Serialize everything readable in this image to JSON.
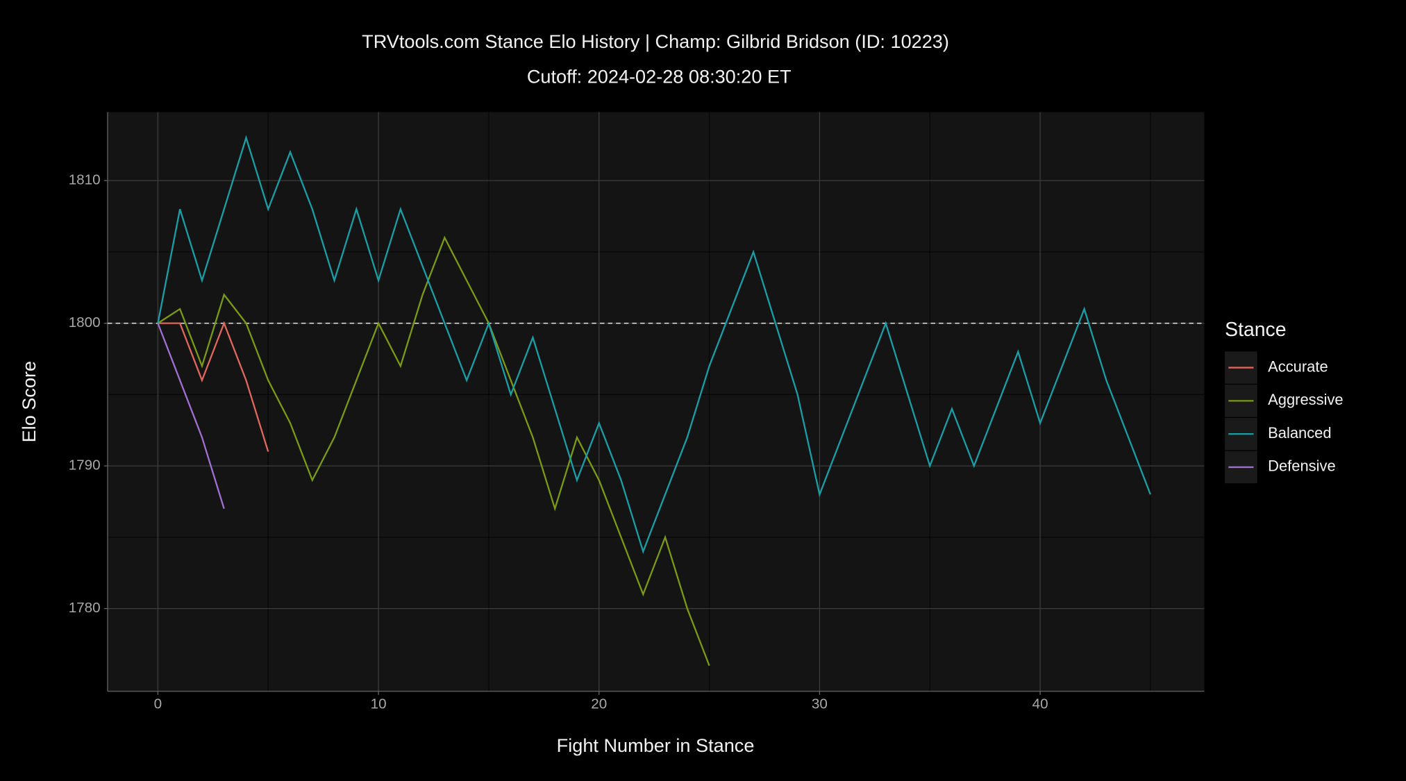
{
  "chart_data": {
    "type": "line",
    "title": "TRVtools.com Stance Elo History  |  Champ: Gilbrid Bridson (ID: 10223)",
    "subtitle": "Cutoff: 2024-02-28 08:30:20 ET",
    "x_label": "Fight Number in Stance",
    "y_label": "Elo Score",
    "legend_title": "Stance",
    "legend_position": "right",
    "grid": true,
    "hline": 1800,
    "xlim": [
      -2.28,
      47.44
    ],
    "ylim": [
      1774.2,
      1814.8
    ],
    "xticks": [
      0,
      10,
      20,
      30,
      40
    ],
    "yticks": [
      1780,
      1790,
      1800,
      1810
    ],
    "minor_xticks": [
      5,
      15,
      25,
      35,
      45
    ],
    "minor_yticks": [
      1785,
      1795,
      1805
    ],
    "series": [
      {
        "name": "Accurate",
        "color": "#e0675c",
        "x": [
          0,
          1,
          2,
          3,
          4,
          5
        ],
        "values": [
          1800,
          1800,
          1796,
          1800,
          1796,
          1791
        ]
      },
      {
        "name": "Aggressive",
        "color": "#7a9a14",
        "x": [
          0,
          1,
          2,
          3,
          4,
          5,
          6,
          7,
          8,
          9,
          10,
          11,
          12,
          13,
          14,
          15,
          16,
          17,
          18,
          19,
          20,
          21,
          22,
          23,
          24,
          25
        ],
        "values": [
          1800,
          1801,
          1797,
          1802,
          1800,
          1796,
          1793,
          1789,
          1792,
          1796,
          1800,
          1797,
          1802,
          1806,
          1803,
          1800,
          1796,
          1792,
          1787,
          1792,
          1789,
          1785,
          1781,
          1785,
          1780,
          1776
        ]
      },
      {
        "name": "Balanced",
        "color": "#1a9ea6",
        "x": [
          0,
          1,
          2,
          3,
          4,
          5,
          6,
          7,
          8,
          9,
          10,
          11,
          12,
          13,
          14,
          15,
          16,
          17,
          18,
          19,
          20,
          21,
          22,
          23,
          24,
          25,
          26,
          27,
          28,
          29,
          30,
          31,
          32,
          33,
          34,
          35,
          36,
          37,
          38,
          39,
          40,
          41,
          42,
          43,
          44,
          45
        ],
        "values": [
          1800,
          1808,
          1803,
          1808,
          1813,
          1808,
          1812,
          1808,
          1803,
          1808,
          1803,
          1808,
          1804,
          1800,
          1796,
          1800,
          1795,
          1799,
          1794,
          1789,
          1793,
          1789,
          1784,
          1788,
          1792,
          1797,
          1801,
          1805,
          1800,
          1795,
          1788,
          1792,
          1796,
          1800,
          1795,
          1790,
          1794,
          1790,
          1794,
          1798,
          1793,
          1797,
          1801,
          1796,
          1792,
          1788
        ]
      },
      {
        "name": "Defensive",
        "color": "#a070d0",
        "x": [
          0,
          1,
          2,
          3
        ],
        "values": [
          1800,
          1796,
          1792,
          1787
        ]
      }
    ]
  }
}
